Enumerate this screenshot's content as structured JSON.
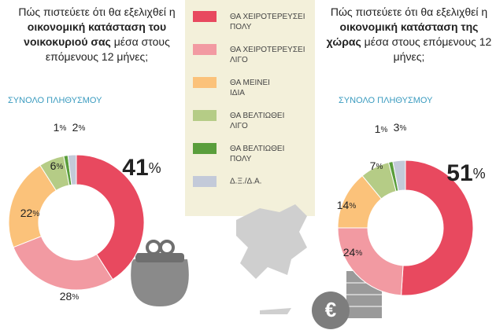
{
  "legend": {
    "labels": [
      "ΘΑ ΧΕΙΡΟΤΕΡΕΥΣΕΙ ΠΟΛΥ",
      "ΘΑ ΧΕΙΡΟΤΕΡΕΥΣΕΙ ΛΙΓΟ",
      "ΘΑ ΜΕΙΝΕΙ ΙΔΙΑ",
      "ΘΑ ΒΕΛΤΙΩΘΕΙ ΛΙΓΟ",
      "ΘΑ ΒΕΛΤΙΩΘΕΙ ΠΟΛΥ",
      "Δ.Ξ./Δ.Α."
    ],
    "colors": [
      "#e8495f",
      "#f29aa2",
      "#fbc27a",
      "#b5cc86",
      "#5a9e3c",
      "#c3cad9"
    ]
  },
  "chart_data": [
    {
      "type": "donut",
      "title_parts": [
        "Πώς πιστεύετε ότι θα εξελιχθεί η ",
        "οικονομική κατάσταση του νοικοκυριού σας",
        " μέσα στους επόμενους 12 μήνες;"
      ],
      "subtitle": "ΣΥΝΟΛΟ ΠΛΗΘΥΣΜΟΥ",
      "values": [
        41,
        28,
        22,
        6,
        1,
        2
      ],
      "value_labels": [
        "41%",
        "28%",
        "22%",
        "6%",
        "1%",
        "2%"
      ]
    },
    {
      "type": "donut",
      "title_parts": [
        "Πώς πιστεύετε ότι θα εξελιχθεί η ",
        "οικονομική κατάσταση της χώρας",
        " μέσα στους επόμενους 12 μήνες;"
      ],
      "subtitle": "ΣΥΝΟΛΟ ΠΛΗΘΥΣΜΟΥ",
      "values": [
        51,
        24,
        14,
        7,
        1,
        3
      ],
      "value_labels": [
        "51%",
        "24%",
        "14%",
        "7%",
        "1%",
        "3%"
      ]
    }
  ]
}
